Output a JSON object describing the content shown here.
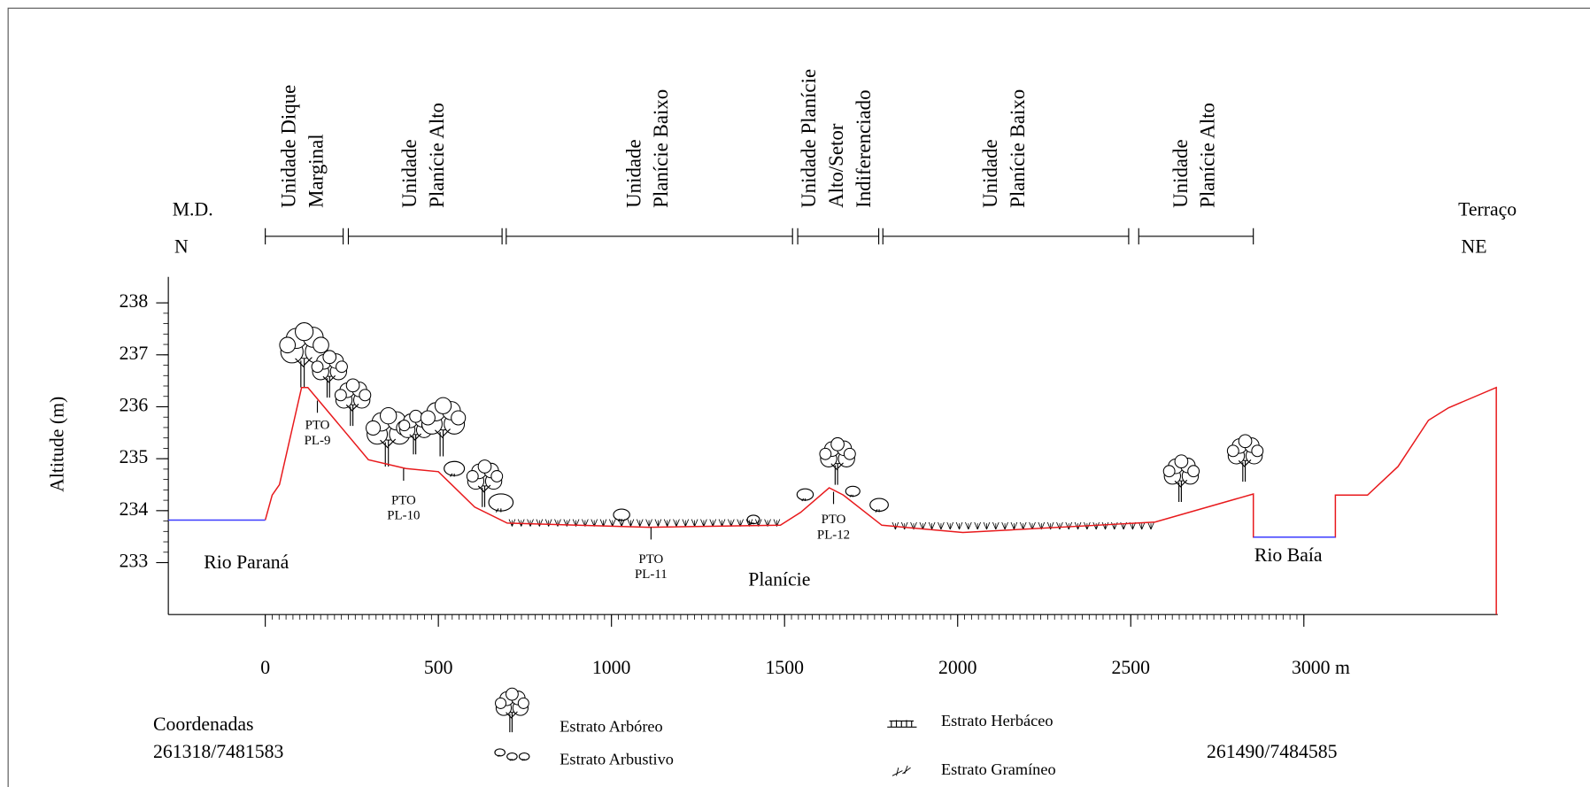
{
  "chart_data": {
    "type": "line",
    "y_label": "Altitude (m)",
    "xlim": [
      -280,
      3560
    ],
    "ylim": [
      232,
      238.5
    ],
    "xticks": [
      0,
      500,
      1000,
      1500,
      2000,
      2500,
      {
        "value": 3000,
        "label": "3000 m"
      }
    ],
    "yticks": [
      233,
      234,
      235,
      236,
      237,
      238
    ],
    "x_minor_step": 20,
    "y_minor_step": 0.2,
    "series": [
      {
        "color": "#e8191c",
        "x": [
          0,
          20,
          41,
          105,
          123,
          298,
          406,
          500,
          605,
          699,
          1108,
          1488,
          1547,
          1629,
          1670,
          1781,
          2015,
          2570,
          2854,
          2854,
          3091,
          3091,
          3184,
          3272,
          3360,
          3418,
          3556,
          3556
        ],
        "values": [
          233.82,
          234.3,
          234.5,
          236.37,
          236.37,
          234.98,
          234.81,
          234.75,
          234.07,
          233.76,
          233.68,
          233.72,
          233.97,
          234.44,
          234.3,
          233.72,
          233.58,
          233.78,
          234.32,
          233.49,
          233.49,
          234.3,
          234.3,
          234.85,
          235.74,
          235.98,
          236.37,
          232
        ]
      },
      {
        "color": "#3b3bff",
        "x": [
          -280,
          0
        ],
        "values": [
          233.82,
          233.82
        ]
      },
      {
        "color": "#3b3bff",
        "x": [
          2854,
          3091
        ],
        "values": [
          233.49,
          233.49
        ]
      }
    ],
    "units": [
      {
        "lines": [
          "Unidade Dique",
          "Marginal"
        ],
        "range": [
          0,
          225
        ]
      },
      {
        "lines": [
          "Unidade",
          "Planície Alto"
        ],
        "range": [
          240,
          684
        ]
      },
      {
        "lines": [
          "Unidade",
          "Planície Baixo"
        ],
        "range": [
          696,
          1523
        ]
      },
      {
        "lines": [
          "Unidade Planície",
          "Alto/Setor",
          "Indiferenciado"
        ],
        "range": [
          1538,
          1772
        ]
      },
      {
        "lines": [
          "Unidade",
          "Planície Baixo"
        ],
        "range": [
          1784,
          2494
        ]
      },
      {
        "lines": [
          "Unidade",
          "Planície Alto"
        ],
        "range": [
          2523,
          2854
        ]
      }
    ],
    "ends": [
      {
        "top": "M.D.",
        "bottom": "N"
      },
      {
        "top": "Terraço",
        "bottom": "NE"
      }
    ],
    "places": [
      "Rio Paraná",
      "Planície",
      "Rio Baía"
    ],
    "points": [
      [
        "PTO",
        "PL-9"
      ],
      [
        "PTO",
        "PL-10"
      ],
      [
        "PTO",
        "PL-11"
      ],
      [
        "PTO",
        "PL-12"
      ]
    ]
  },
  "coordinates": {
    "heading": "Coordenadas",
    "start": "261318/7481583",
    "end": "261490/7484585"
  },
  "legend": [
    "Estrato Arbóreo",
    "Estrato Arbustivo",
    "Estrato Herbáceo",
    "Estrato Gramíneo"
  ]
}
